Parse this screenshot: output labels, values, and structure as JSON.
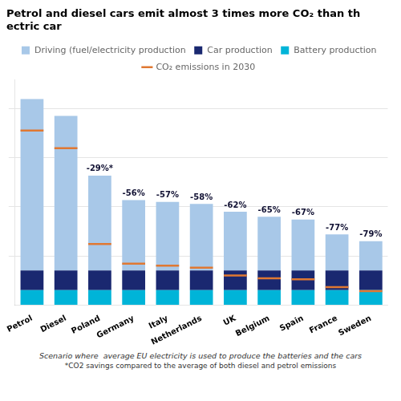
{
  "chart_data": {
    "type": "bar",
    "stacked": true,
    "title": [
      "Petrol and diesel cars emit almost 3 times more CO₂ than th",
      "ectric car"
    ],
    "categories": [
      "Petrol",
      "Diesel",
      "Poland",
      "Germany",
      "Italy",
      "Netherlands",
      "UK",
      "Belgium",
      "Spain",
      "France",
      "Sweden"
    ],
    "series": [
      {
        "name": "Battery production",
        "color": "#00b4d8",
        "values": [
          15,
          15,
          15,
          15,
          15,
          15,
          15,
          15,
          15,
          15,
          15
        ]
      },
      {
        "name": "Car production",
        "color": "#1a2870",
        "values": [
          20,
          20,
          20,
          20,
          20,
          20,
          20,
          20,
          20,
          20,
          20
        ]
      },
      {
        "name": "Driving (fuel/electricity production",
        "color": "#a8c8e8",
        "values": [
          175,
          158,
          97,
          72,
          70,
          68,
          60,
          55,
          52,
          37,
          30
        ]
      },
      {
        "name": "CO₂ emissions in 2030",
        "type": "line",
        "line_style": "none",
        "marker": "line",
        "color": "#e07832",
        "values": [
          178,
          160,
          62,
          42,
          40,
          38,
          30,
          27,
          26,
          18,
          14
        ]
      }
    ],
    "annotations": [
      null,
      null,
      "-29%*",
      "-56%",
      "-57%",
      "-58%",
      "-62%",
      "-65%",
      "-67%",
      "-77%",
      "-79%"
    ],
    "footnotes": [
      "Scenario where  average EU electricity is used to produce the batteries and the cars",
      "*CO2 savings compared to the average of both diesel and petrol emissions"
    ],
    "ylim": [
      0,
      230
    ],
    "yticks": [
      50,
      100,
      150,
      200
    ],
    "grid": true,
    "tick_labels": "x",
    "legend": "top"
  }
}
